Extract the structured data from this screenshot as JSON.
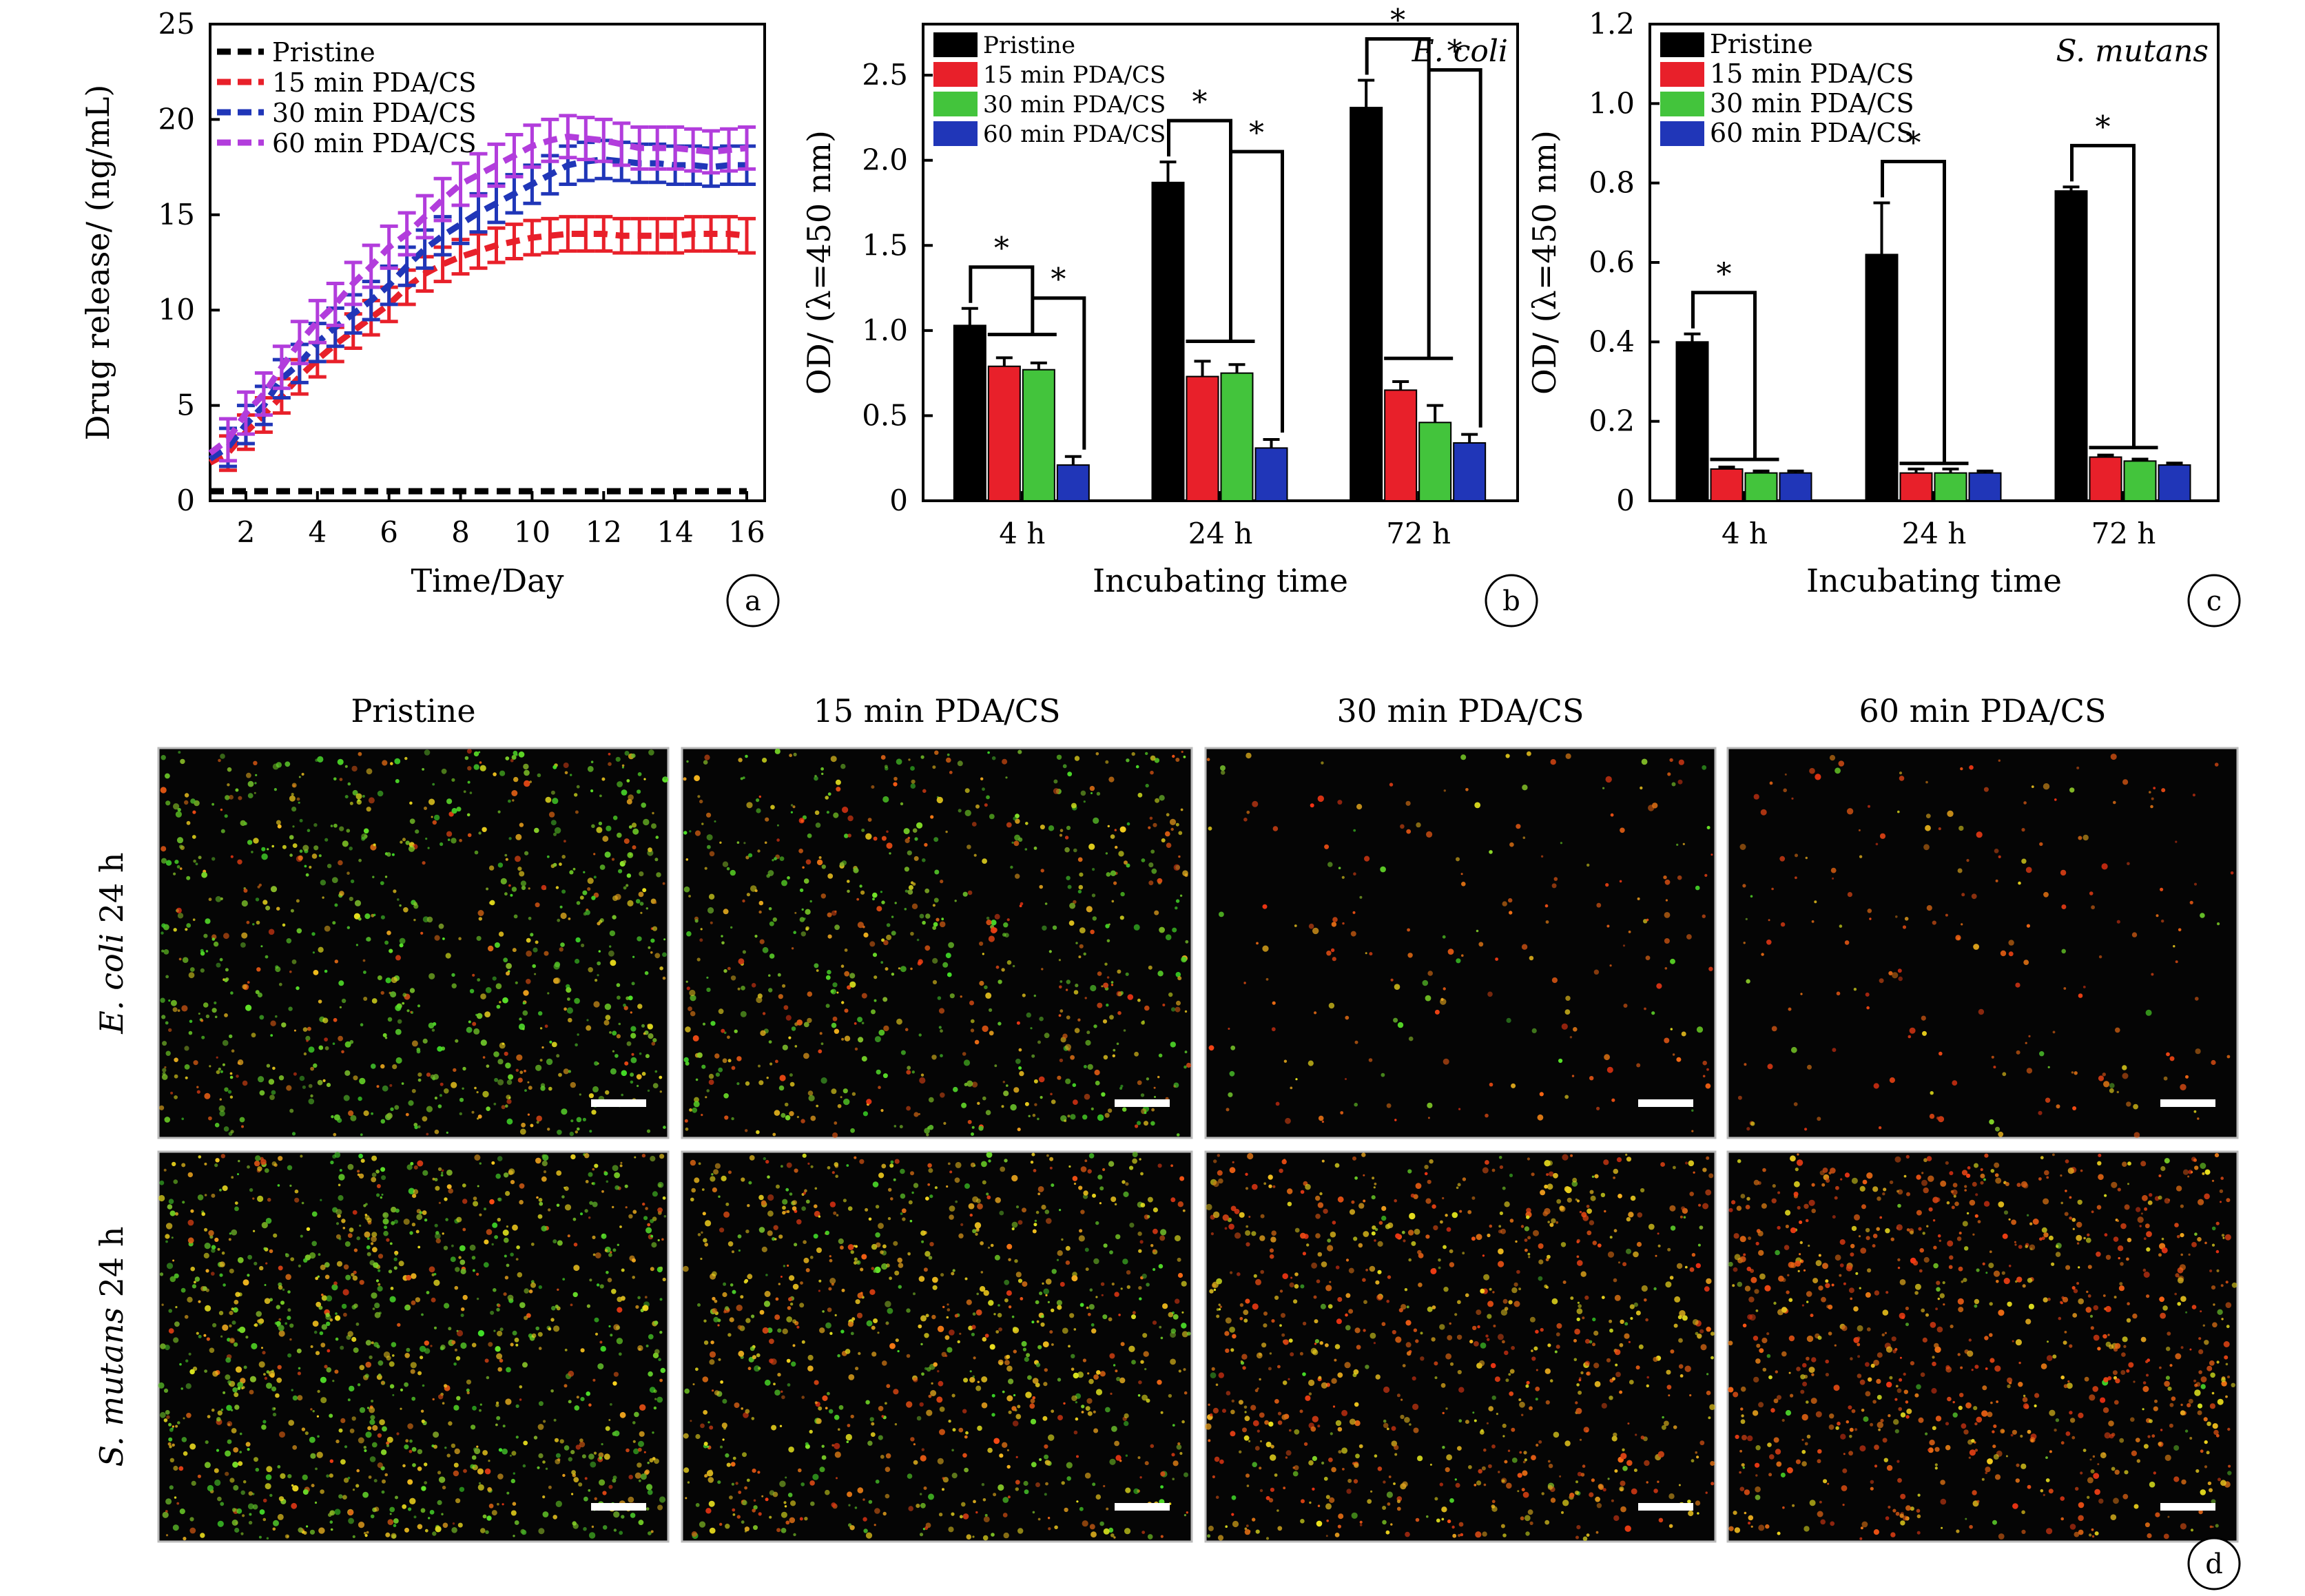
{
  "colors": {
    "pristine": "#000000",
    "pda15": "#e8202a",
    "pda30": "#43c43c",
    "pda60": "#2036b8",
    "pda60_line": "#b23ddc"
  },
  "chart_data": [
    {
      "panel": "a",
      "type": "line",
      "panel_label": "a",
      "xlabel": "Time/Day",
      "ylabel": "Drug release/ (ng/mL)",
      "xlim": [
        1,
        16.5
      ],
      "ylim": [
        0,
        25
      ],
      "xticks": [
        "2",
        "4",
        "6",
        "8",
        "10",
        "12",
        "14",
        "16"
      ],
      "yticks": [
        "0",
        "5",
        "10",
        "15",
        "20",
        "25"
      ],
      "legend_placement": "top-left",
      "x": [
        1,
        1.5,
        2,
        2.5,
        3,
        3.5,
        4,
        4.5,
        5,
        5.5,
        6,
        6.5,
        7,
        7.5,
        8,
        8.5,
        9,
        9.5,
        10,
        10.5,
        11,
        11.5,
        12,
        12.5,
        13,
        13.5,
        14,
        14.5,
        15,
        15.5,
        16
      ],
      "series": [
        {
          "name": "Pristine",
          "color": "#000000",
          "errorbars": false,
          "values": [
            0.5,
            0.5,
            0.5,
            0.5,
            0.5,
            0.5,
            0.5,
            0.5,
            0.5,
            0.5,
            0.5,
            0.5,
            0.5,
            0.5,
            0.5,
            0.5,
            0.5,
            0.5,
            0.5,
            0.5,
            0.5,
            0.5,
            0.5,
            0.5,
            0.5,
            0.5,
            0.5,
            0.5,
            0.5,
            0.5,
            0.5
          ]
        },
        {
          "name": "15 min PDA/CS",
          "color": "#e8202a",
          "errorbars": true,
          "err": 0.9,
          "values": [
            2.0,
            2.5,
            3.6,
            4.5,
            5.5,
            6.5,
            7.4,
            8.2,
            8.9,
            9.6,
            10.3,
            11.2,
            11.9,
            12.4,
            12.8,
            13.1,
            13.4,
            13.6,
            13.8,
            13.9,
            14.0,
            14.0,
            14.0,
            13.9,
            13.9,
            13.9,
            13.9,
            14.0,
            14.0,
            14.0,
            13.9
          ]
        },
        {
          "name": "30 min PDA/CS",
          "color": "#2036b8",
          "errorbars": true,
          "err": 1.0,
          "values": [
            2.2,
            2.8,
            4.0,
            5.0,
            6.4,
            7.2,
            8.3,
            9.1,
            9.8,
            10.5,
            11.3,
            12.3,
            13.2,
            13.9,
            14.5,
            15.1,
            15.6,
            16.1,
            16.6,
            17.1,
            17.6,
            17.8,
            17.9,
            17.8,
            17.7,
            17.7,
            17.6,
            17.6,
            17.5,
            17.6,
            17.6
          ]
        },
        {
          "name": "60 min PDA/CS",
          "color": "#b23ddc",
          "errorbars": true,
          "err": 1.1,
          "values": [
            2.5,
            3.2,
            4.6,
            5.6,
            7.0,
            8.3,
            9.4,
            10.3,
            11.4,
            12.3,
            13.3,
            14.0,
            14.9,
            15.8,
            16.6,
            17.1,
            17.6,
            18.1,
            18.6,
            18.9,
            19.1,
            19.0,
            18.9,
            18.7,
            18.5,
            18.5,
            18.5,
            18.4,
            18.3,
            18.4,
            18.5
          ]
        }
      ]
    },
    {
      "panel": "b",
      "type": "bar",
      "panel_label": "b",
      "title": "E. coli",
      "xlabel": "Incubating time",
      "ylabel": "OD/ (λ=450 nm)",
      "ylim": [
        0,
        2.8
      ],
      "yticks": [
        "0",
        "0.5",
        "1.0",
        "1.5",
        "2.0",
        "2.5"
      ],
      "categories": [
        "4 h",
        "24 h",
        "72 h"
      ],
      "legend_placement": "top-left",
      "significance_marker": "*",
      "series": [
        {
          "name": "Pristine",
          "color": "#000000",
          "values": [
            1.03,
            1.87,
            2.31
          ],
          "err": [
            0.1,
            0.12,
            0.16
          ]
        },
        {
          "name": "15 min PDA/CS",
          "color": "#e8202a",
          "values": [
            0.79,
            0.73,
            0.65
          ],
          "err": [
            0.05,
            0.09,
            0.05
          ]
        },
        {
          "name": "30 min PDA/CS",
          "color": "#43c43c",
          "values": [
            0.77,
            0.75,
            0.46
          ],
          "err": [
            0.04,
            0.05,
            0.1
          ]
        },
        {
          "name": "60 min PDA/CS",
          "color": "#2036b8",
          "values": [
            0.21,
            0.31,
            0.34
          ],
          "err": [
            0.05,
            0.05,
            0.05
          ]
        }
      ]
    },
    {
      "panel": "c",
      "type": "bar",
      "panel_label": "c",
      "title": "S. mutans",
      "xlabel": "Incubating time",
      "ylabel": "OD/ (λ=450 nm)",
      "ylim": [
        0,
        1.2
      ],
      "yticks": [
        "0",
        "0.2",
        "0.4",
        "0.6",
        "0.8",
        "1.0",
        "1.2"
      ],
      "categories": [
        "4 h",
        "24 h",
        "72 h"
      ],
      "legend_placement": "top-left",
      "significance_marker": "*",
      "series": [
        {
          "name": "Pristine",
          "color": "#000000",
          "values": [
            0.4,
            0.62,
            0.78
          ],
          "err": [
            0.02,
            0.13,
            0.01
          ]
        },
        {
          "name": "15 min PDA/CS",
          "color": "#e8202a",
          "values": [
            0.08,
            0.07,
            0.11
          ],
          "err": [
            0.005,
            0.01,
            0.005
          ]
        },
        {
          "name": "30 min PDA/CS",
          "color": "#43c43c",
          "values": [
            0.07,
            0.07,
            0.1
          ],
          "err": [
            0.005,
            0.01,
            0.005
          ]
        },
        {
          "name": "60 min PDA/CS",
          "color": "#2036b8",
          "values": [
            0.07,
            0.07,
            0.09
          ],
          "err": [
            0.005,
            0.005,
            0.005
          ]
        }
      ]
    }
  ],
  "micrographs": {
    "panel_label": "d",
    "column_titles": [
      "Pristine",
      "15 min PDA/CS",
      "30 min PDA/CS",
      "60 min PDA/CS"
    ],
    "row_labels": [
      {
        "species": "E. coli",
        "time": " 24 h"
      },
      {
        "species": "S. mutans",
        "time": " 24 h"
      }
    ],
    "cells": [
      [
        {
          "green": 0.75,
          "yellow": 0.3,
          "red": 0.15,
          "density": 0.65
        },
        {
          "green": 0.6,
          "yellow": 0.35,
          "red": 0.3,
          "density": 0.55
        },
        {
          "green": 0.1,
          "yellow": 0.1,
          "red": 0.45,
          "density": 0.15
        },
        {
          "green": 0.08,
          "yellow": 0.1,
          "red": 0.55,
          "density": 0.15
        }
      ],
      [
        {
          "green": 0.8,
          "yellow": 0.6,
          "red": 0.2,
          "density": 0.85
        },
        {
          "green": 0.45,
          "yellow": 0.75,
          "red": 0.45,
          "density": 0.7
        },
        {
          "green": 0.1,
          "yellow": 0.7,
          "red": 0.85,
          "density": 0.65
        },
        {
          "green": 0.05,
          "yellow": 0.35,
          "red": 0.95,
          "density": 0.7
        }
      ]
    ]
  }
}
